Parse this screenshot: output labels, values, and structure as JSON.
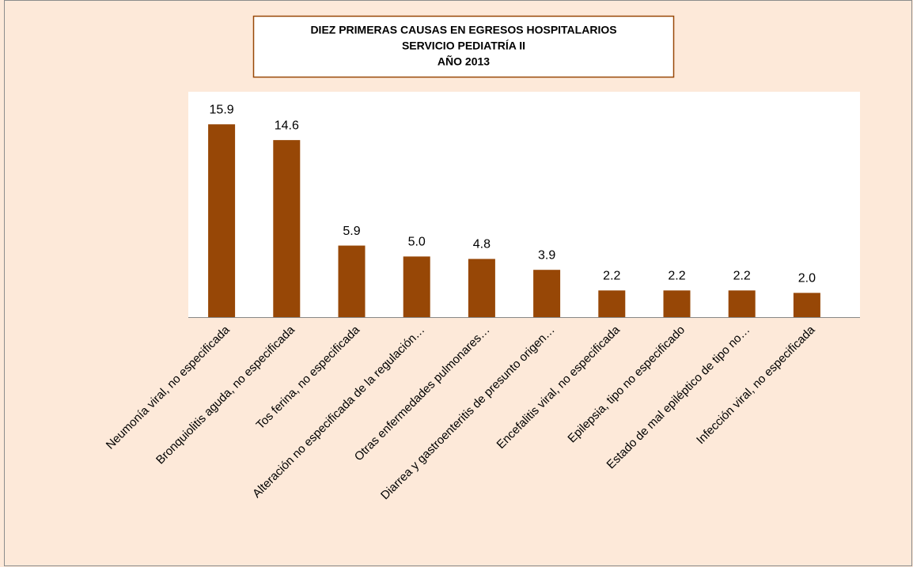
{
  "chart_data": {
    "type": "bar",
    "title": [
      "DIEZ PRIMERAS CAUSAS EN EGRESOS HOSPITALARIOS",
      "SERVICIO PEDIATRÍA II",
      "AÑO 2013"
    ],
    "categories": [
      "Neumonía viral, no especificada",
      "Bronquiolitis aguda, no especificada",
      "Tos ferina, no especificada",
      "Alteración no especificada de la regulación…",
      "Otras enfermedades pulmonares…",
      "Diarrea y gastroenteritis de presunto origen…",
      "Encefalitis viral, no especificada",
      "Epilepsia, tipo no especificado",
      "Estado de mal epiléptico de tipo no…",
      "Infección viral, no especificada"
    ],
    "values": [
      15.9,
      14.6,
      5.9,
      5.0,
      4.8,
      3.9,
      2.2,
      2.2,
      2.2,
      2.0
    ],
    "value_labels": [
      "15.9",
      "14.6",
      "5.9",
      "5.0",
      "4.8",
      "3.9",
      "2.2",
      "2.2",
      "2.2",
      "2.0"
    ],
    "color": "#974706",
    "ylim": [
      0,
      18
    ]
  }
}
